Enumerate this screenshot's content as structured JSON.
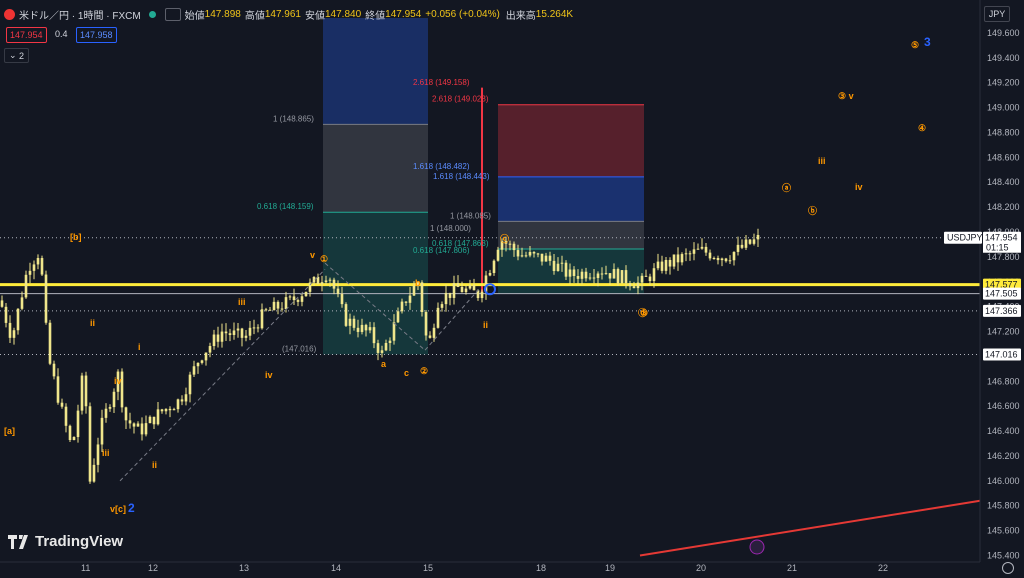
{
  "header": {
    "symbol": "米ドル／円 · 1時間 · FXCM",
    "open_label": "始値",
    "open": "147.898",
    "high_label": "高値",
    "high": "147.961",
    "low_label": "安値",
    "low": "147.840",
    "close_label": "終値",
    "close": "147.954",
    "change": "+0.056 (+0.04%)",
    "volume_label": "出来高",
    "volume": "15.264K"
  },
  "trade": {
    "sell": "147.954",
    "spread": "0.4",
    "buy": "147.958"
  },
  "indicator_toggle": "2",
  "currency_button": "JPY",
  "branding": "TradingView",
  "colors": {
    "background": "#131722",
    "candle": "#f0e68c",
    "accent_yellow": "#ffeb3b",
    "red_line": "#e53935",
    "wave_orange": "#ff9800",
    "wave_blue": "#2962ff"
  },
  "chart_data": {
    "type": "candlestick",
    "ylim": [
      145.38,
      149.72
    ],
    "y_ticks": [
      "149.600",
      "149.400",
      "149.200",
      "149.000",
      "148.800",
      "148.600",
      "148.400",
      "148.200",
      "148.000",
      "147.800",
      "147.600",
      "147.400",
      "147.200",
      "147.000",
      "146.800",
      "146.600",
      "146.400",
      "146.200",
      "146.000",
      "145.800",
      "145.600",
      "145.400"
    ],
    "x_ticks": [
      "11",
      "12",
      "13",
      "14",
      "15",
      "18",
      "19",
      "20",
      "21",
      "22"
    ],
    "price_labels": [
      {
        "text": "USDJPY",
        "value": 147.954
      },
      {
        "text": "147.954",
        "value": 147.954
      },
      {
        "text": "01:15",
        "value": 147.954
      },
      {
        "text": "147.577",
        "value": 147.577
      },
      {
        "text": "147.505",
        "value": 147.505
      },
      {
        "text": "147.366",
        "value": 147.366
      },
      {
        "text": "147.016",
        "value": 147.016
      }
    ],
    "horizontal_lines": [
      {
        "value": 147.954,
        "style": "dotted",
        "color": "#b2b5be"
      },
      {
        "value": 147.577,
        "style": "solid",
        "color": "#ffeb3b"
      },
      {
        "value": 147.505,
        "style": "solid",
        "color": "#b2b5be"
      },
      {
        "value": 147.366,
        "style": "dotted",
        "color": "#b2b5be"
      },
      {
        "value": 147.016,
        "style": "dotted",
        "color": "#b2b5be"
      }
    ],
    "fib_levels_left": [
      {
        "text": "1 (148.865)",
        "value": 148.865
      },
      {
        "text": "0.618 (148.159)",
        "value": 148.159
      },
      {
        "text": "(147.016)",
        "value": 147.016
      }
    ],
    "fib_levels_right": [
      {
        "text": "2.618 (149.158)",
        "value": 149.158,
        "color": "#f23645"
      },
      {
        "text": "2.618 (149.023)",
        "value": 149.023,
        "color": "#f23645"
      },
      {
        "text": "1.618 (148.482)",
        "value": 148.482,
        "color": "#5b8cff"
      },
      {
        "text": "1.618 (148.443)",
        "value": 148.443,
        "color": "#5b8cff"
      },
      {
        "text": "1 (148.085)",
        "value": 148.085,
        "color": "#9598a1"
      },
      {
        "text": "1 (148.000)",
        "value": 148.0,
        "color": "#9598a1"
      },
      {
        "text": "0.618 (147.863)",
        "value": 147.863,
        "color": "#22ab94"
      },
      {
        "text": "0.618 (147.806)",
        "value": 147.806,
        "color": "#22ab94"
      }
    ],
    "wave_labels": [
      {
        "text": "[b]",
        "color": "#ff9800"
      },
      {
        "text": "[a]",
        "color": "#ff9800"
      },
      {
        "text": "v[c]",
        "color": "#ff9800"
      },
      {
        "text": "2",
        "color": "#2962ff"
      },
      {
        "text": "ii",
        "color": "#ff9800"
      },
      {
        "text": "i",
        "color": "#ff9800"
      },
      {
        "text": "iv",
        "color": "#ff9800"
      },
      {
        "text": "iii",
        "color": "#ff9800"
      },
      {
        "text": "ii",
        "color": "#ff9800"
      },
      {
        "text": "iii",
        "color": "#ff9800"
      },
      {
        "text": "iv",
        "color": "#ff9800"
      },
      {
        "text": "v",
        "color": "#ff9800"
      },
      {
        "text": "①",
        "color": "#ff9800"
      },
      {
        "text": "a",
        "color": "#ff9800"
      },
      {
        "text": "b",
        "color": "#ff9800"
      },
      {
        "text": "c",
        "color": "#ff9800"
      },
      {
        "text": "②",
        "color": "#ff9800"
      },
      {
        "text": "ii",
        "color": "#ff9800"
      },
      {
        "text": "③",
        "color": "#ff9800"
      },
      {
        "text": "④",
        "color": "#ff9800"
      },
      {
        "text": "⑤",
        "color": "#ff9800"
      },
      {
        "text": "3",
        "color": "#2962ff"
      },
      {
        "text": "③ v",
        "color": "#ff9800"
      },
      {
        "text": "iii",
        "color": "#ff9800"
      },
      {
        "text": "iv",
        "color": "#ff9800"
      },
      {
        "text": "ⓐ",
        "color": "#ff9800"
      },
      {
        "text": "ⓑ",
        "color": "#ff9800"
      },
      {
        "text": "ⓒ",
        "color": "#ff9800"
      },
      {
        "text": "ⓓ",
        "color": "#ff9800"
      }
    ]
  }
}
